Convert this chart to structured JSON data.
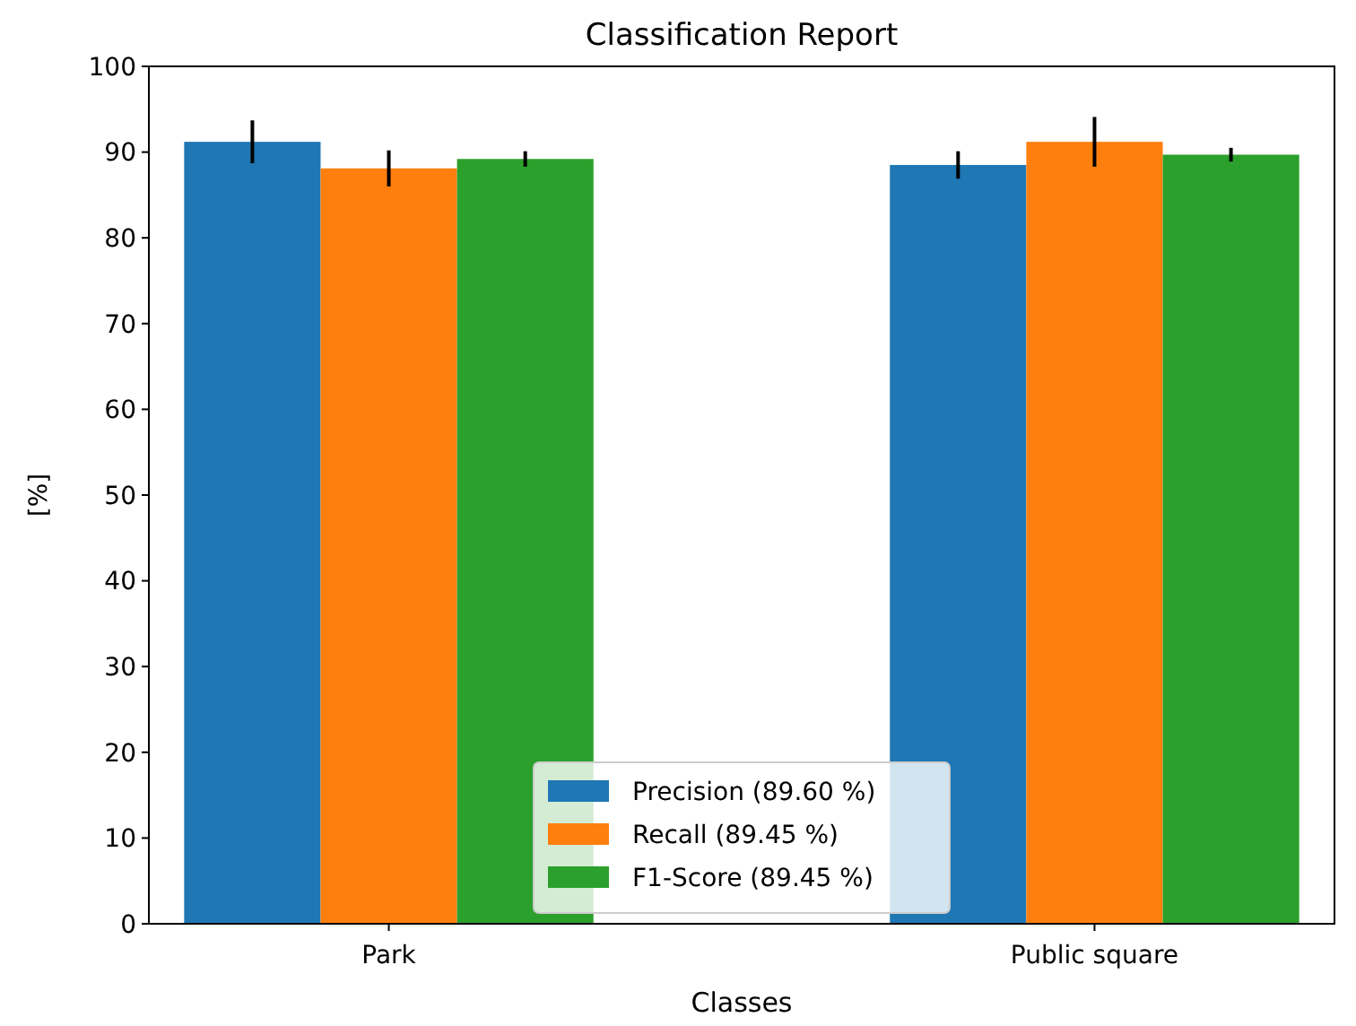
{
  "chart_data": {
    "type": "bar",
    "title": "Classification Report",
    "xlabel": "Classes",
    "ylabel": "[%]",
    "categories": [
      "Park",
      "Public square"
    ],
    "series": [
      {
        "name": "Precision (89.60 %)",
        "color": "#1f77b4",
        "values": [
          91.2,
          88.5
        ],
        "errors": [
          2.5,
          1.6
        ]
      },
      {
        "name": "Recall (89.45 %)",
        "color": "#ff7f0e",
        "values": [
          88.1,
          91.2
        ],
        "errors": [
          2.1,
          2.9
        ]
      },
      {
        "name": "F1-Score (89.45 %)",
        "color": "#2ca02c",
        "values": [
          89.2,
          89.7
        ],
        "errors": [
          0.9,
          0.8
        ]
      }
    ],
    "ylim": [
      0,
      100
    ],
    "yticks": [
      0,
      10,
      20,
      30,
      40,
      50,
      60,
      70,
      80,
      90,
      100
    ],
    "grid": false,
    "legend": "bottom"
  }
}
